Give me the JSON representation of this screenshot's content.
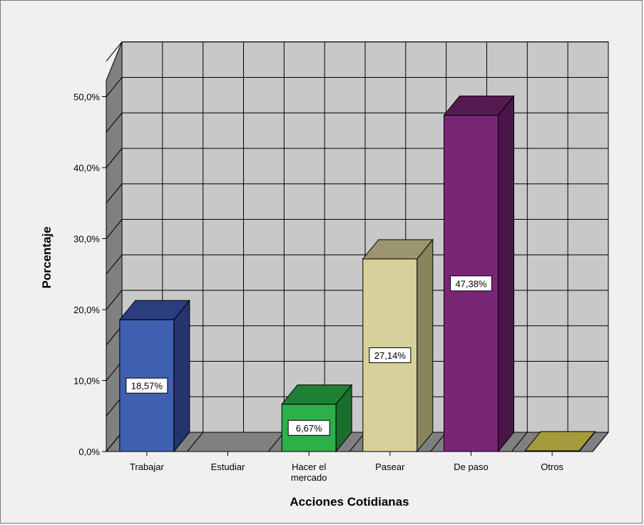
{
  "chart_data": {
    "type": "bar",
    "title": "",
    "xlabel": "Acciones Cotidianas",
    "ylabel": "Porcentaje",
    "ylim": [
      0,
      55
    ],
    "yticks": [
      0,
      10,
      20,
      30,
      40,
      50
    ],
    "ytick_labels": [
      "0,0%",
      "10,0%",
      "20,0%",
      "30,0%",
      "40,0%",
      "50,0%"
    ],
    "categories": [
      [
        "Trabajar"
      ],
      [
        "Estudiar"
      ],
      [
        "Hacer el",
        "mercado"
      ],
      [
        "Pasear"
      ],
      [
        "De paso"
      ],
      [
        "Otros"
      ]
    ],
    "values": [
      18.57,
      0,
      6.67,
      27.14,
      47.38,
      0.1
    ],
    "data_labels": [
      "18,57%",
      "",
      "6,67%",
      "27,14%",
      "47,38%",
      ""
    ],
    "colors": [
      {
        "front": "#3f5fb0",
        "side": "#23356c",
        "top": "#2a3e80"
      },
      {
        "front": "#808080",
        "side": "#555555",
        "top": "#666666"
      },
      {
        "front": "#2bb04a",
        "side": "#1a6e2c",
        "top": "#1f8035"
      },
      {
        "front": "#d6d09a",
        "side": "#8a845c",
        "top": "#9c9670"
      },
      {
        "front": "#7a2677",
        "side": "#4a1547",
        "top": "#561a53"
      },
      {
        "front": "#c3b94d",
        "side": "#8a8232",
        "top": "#a39a3c"
      }
    ],
    "grid": true,
    "legend": "none"
  }
}
